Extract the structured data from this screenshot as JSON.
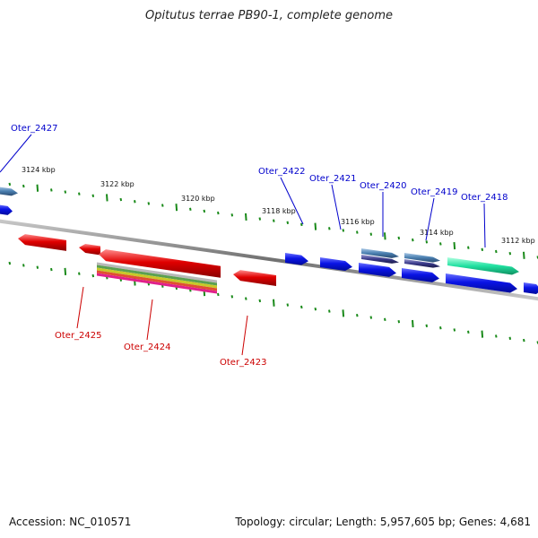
{
  "title": "Opitutus terrae PB90-1, complete genome",
  "footer": {
    "accession": "Accession: NC_010571",
    "summary": "Topology: circular; Length: 5,957,605 bp; Genes: 4,681"
  },
  "colors": {
    "backbone": "#808080",
    "tick": "#1a8a1a",
    "forward_label": "#0000cc",
    "reverse_label": "#cc0000",
    "forward_gene": "#0a14e6",
    "reverse_gene": "#e00000",
    "steel_gene": "#4a7fb0",
    "navy_gene": "#3a3a8a",
    "teal_gene": "#20e0a0"
  },
  "tick_labels": [
    "3124 kbp",
    "3122 kbp",
    "3120 kbp",
    "3118 kbp",
    "3116 kbp",
    "3114 kbp",
    "3112 kbp"
  ],
  "forward_genes": [
    "Oter_2427",
    "Oter_2422",
    "Oter_2421",
    "Oter_2420",
    "Oter_2419",
    "Oter_2418"
  ],
  "reverse_genes": [
    "Oter_2425",
    "Oter_2424",
    "Oter_2423"
  ]
}
